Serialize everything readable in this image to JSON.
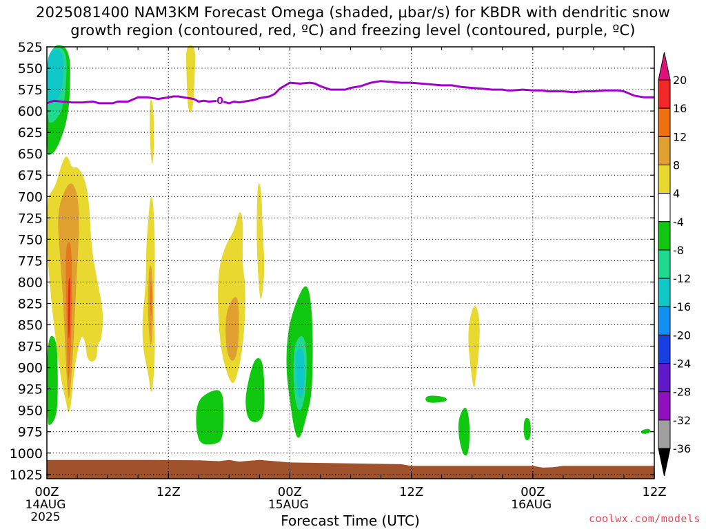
{
  "title_line1": "2025081400 NAM3KM Forecast Omega (shaded, μbar/s) for KBDR with dendritic snow",
  "title_line2": "growth region (contoured, red, ºC) and freezing level (contoured, purple, ºC)",
  "credit": "coolwx.com/models",
  "chart_data": {
    "type": "heatmap",
    "title": "2025081400 NAM3KM Forecast Omega (shaded, μbar/s) for KBDR with dendritic snow growth region (contoured, red, ºC) and freezing level (contoured, purple, ºC)",
    "xlabel": "Forecast Time (UTC)",
    "ylabel": "",
    "x_range_hours": [
      0,
      60
    ],
    "y_range_hPa": [
      525,
      1030
    ],
    "y_scale": "pressure (inverted)",
    "grid": true,
    "x_ticks": [
      {
        "hour": 0,
        "label": "00Z",
        "sub": "14AUG",
        "sub2": "2025"
      },
      {
        "hour": 12,
        "label": "12Z",
        "sub": "",
        "sub2": ""
      },
      {
        "hour": 24,
        "label": "00Z",
        "sub": "15AUG",
        "sub2": ""
      },
      {
        "hour": 36,
        "label": "12Z",
        "sub": "",
        "sub2": ""
      },
      {
        "hour": 48,
        "label": "00Z",
        "sub": "16AUG",
        "sub2": ""
      },
      {
        "hour": 60,
        "label": "12Z",
        "sub": "",
        "sub2": ""
      }
    ],
    "y_ticks": [
      "525",
      "550",
      "575",
      "600",
      "625",
      "650",
      "675",
      "700",
      "725",
      "750",
      "775",
      "800",
      "825",
      "850",
      "875",
      "900",
      "925",
      "950",
      "975",
      "1000",
      "1025"
    ],
    "colorbar": {
      "labels": [
        "20",
        "16",
        "12",
        "8",
        "4",
        "-4",
        "-8",
        "-12",
        "-16",
        "-20",
        "-24",
        "-28",
        "-32",
        "-36"
      ],
      "colors": [
        "#e0107a",
        "#f02828",
        "#f07010",
        "#e0a030",
        "#e8d830",
        "#ffffff",
        "#10c810",
        "#20d890",
        "#10c8c8",
        "#1090f0",
        "#1840e0",
        "#6018c8",
        "#9010c0",
        "#a0a0a0",
        "#000000"
      ]
    },
    "freezing_level": {
      "label": "0",
      "color": "#a000c8",
      "hours": [
        0,
        0.7,
        1.5,
        2.5,
        3.5,
        4.5,
        5.2,
        6,
        6.5,
        7,
        8,
        9,
        10,
        11,
        11.5,
        12,
        12.5,
        13,
        14,
        14.5,
        15,
        15.5,
        16,
        17,
        18,
        18.5,
        19,
        20,
        20.5,
        21,
        22,
        22.5,
        23,
        24,
        25,
        26,
        26.5,
        27,
        28,
        29,
        29.5,
        30,
        31,
        32,
        32.5,
        33,
        34,
        35,
        36,
        37,
        38,
        39,
        40,
        41,
        42,
        43,
        44,
        45,
        45.5,
        46,
        47,
        48,
        49,
        49.5,
        50,
        51,
        52,
        53,
        53.5,
        54,
        55,
        56,
        56.5,
        57,
        58,
        59,
        60
      ],
      "pressure_hPa": [
        591,
        588,
        589,
        590,
        590,
        589,
        591,
        591,
        591,
        589,
        589,
        584,
        584,
        586,
        585,
        584,
        583,
        583,
        585,
        586,
        589,
        588,
        589,
        588,
        591,
        589,
        590,
        588,
        587,
        585,
        583,
        580,
        574,
        567,
        568,
        567,
        568,
        571,
        575,
        575,
        575,
        573,
        571,
        567,
        566,
        565,
        566,
        567,
        567,
        568,
        569,
        570,
        570,
        572,
        573,
        574,
        575,
        575,
        576,
        576,
        575,
        576,
        576,
        577,
        577,
        577,
        578,
        577,
        577,
        577,
        576,
        576,
        576,
        577,
        582,
        584,
        584
      ]
    },
    "omega_regions": [
      {
        "value_range": "-16 to -8",
        "hours": "0-2.2",
        "hPa": "525-650"
      },
      {
        "value_range": "-8 to -4",
        "hours": "0-1.0",
        "hPa": "860-965"
      },
      {
        "value_range": "4 to 16",
        "hours": "0-5.6",
        "hPa": "650-950"
      },
      {
        "value_range": "4 to 12",
        "hours": "9.3-10.6",
        "hPa": "585-935"
      },
      {
        "value_range": "4 to 8",
        "hours": "13.8-14.6",
        "hPa": "525-605"
      },
      {
        "value_range": "-8 to -4",
        "hours": "14.7-17.5",
        "hPa": "925-990"
      },
      {
        "value_range": "4 to 12",
        "hours": "16.7-19.3",
        "hPa": "715-925"
      },
      {
        "value_range": "4 to 8",
        "hours": "20.6-21.5",
        "hPa": "675-825"
      },
      {
        "value_range": "-8 to -4",
        "hours": "19.5-21.5",
        "hPa": "885-965"
      },
      {
        "value_range": "-12 to -4",
        "hours": "23.3-26.3",
        "hPa": "800-985"
      },
      {
        "value_range": "-8 to -4",
        "hours": "37.3-39.6",
        "hPa": "932-940"
      },
      {
        "value_range": "-8 to -4",
        "hours": "40.5-41.8",
        "hPa": "945-1005"
      },
      {
        "value_range": "4 to 8",
        "hours": "41.6-42.8",
        "hPa": "820-930"
      },
      {
        "value_range": "-8 to -4",
        "hours": "47.1-47.8",
        "hPa": "958-985"
      },
      {
        "value_range": "-8 to -4",
        "hours": "58.7-59.6",
        "hPa": "972-977"
      }
    ]
  }
}
